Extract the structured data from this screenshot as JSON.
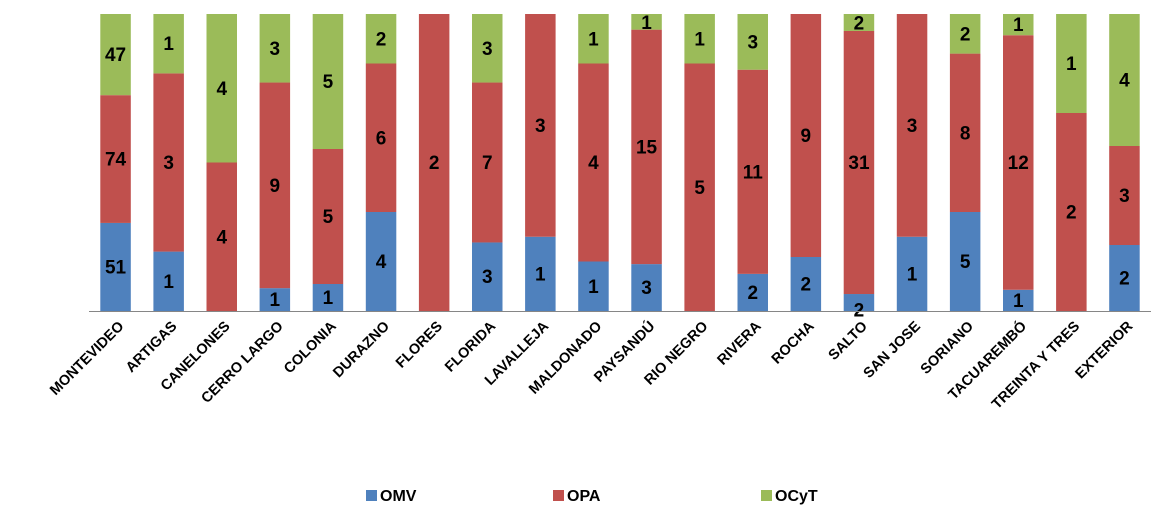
{
  "chart_data": {
    "type": "bar",
    "stacking": "percent",
    "categories": [
      "MONTEVIDEO",
      "ARTIGAS",
      "CANELONES",
      "CERRO LARGO",
      "COLONIA",
      "DURAZNO",
      "FLORES",
      "FLORIDA",
      "LAVALLEJA",
      "MALDONADO",
      "PAYSANDÚ",
      "RIO NEGRO",
      "RIVERA",
      "ROCHA",
      "SALTO",
      "SAN JOSE",
      "SORIANO",
      "TACUAREMBÓ",
      "TREINTA Y TRES",
      "EXTERIOR"
    ],
    "series": [
      {
        "name": "OMV",
        "color": "#4F81BD",
        "values": [
          51,
          1,
          0,
          1,
          1,
          4,
          0,
          3,
          1,
          1,
          3,
          0,
          2,
          2,
          2,
          1,
          5,
          1,
          0,
          2
        ]
      },
      {
        "name": "OPA",
        "color": "#C0504D",
        "values": [
          74,
          3,
          4,
          9,
          5,
          6,
          2,
          7,
          3,
          4,
          15,
          5,
          11,
          9,
          31,
          3,
          8,
          12,
          2,
          3
        ]
      },
      {
        "name": "OCyT",
        "color": "#9BBB59",
        "values": [
          47,
          1,
          4,
          3,
          5,
          2,
          0,
          3,
          0,
          1,
          1,
          1,
          3,
          0,
          2,
          0,
          2,
          1,
          1,
          4
        ]
      }
    ],
    "legend_position": "bottom",
    "grid": false
  }
}
